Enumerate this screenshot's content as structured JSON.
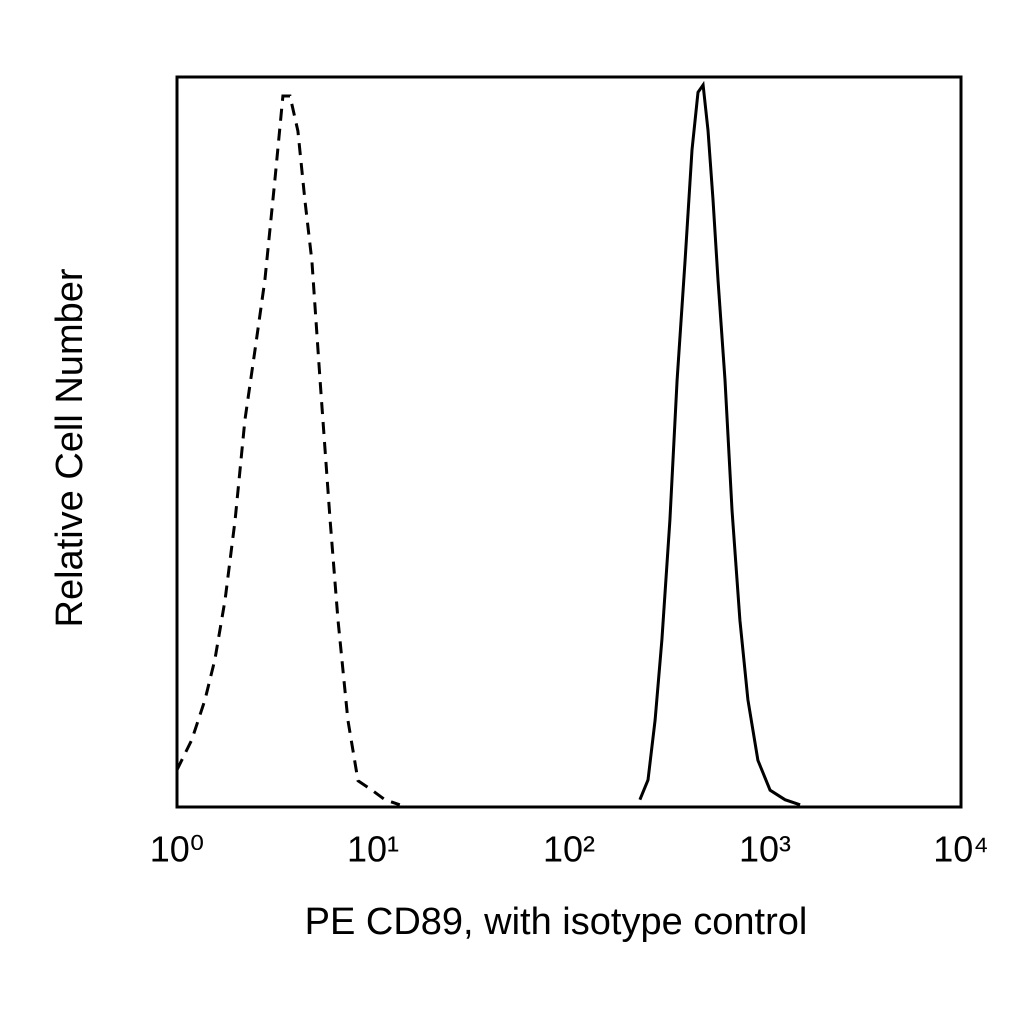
{
  "chart_data": {
    "type": "line",
    "xlabel": "PE CD89, with isotype control",
    "ylabel": "Relative Cell Number",
    "xscale": "log",
    "xlim": [
      1,
      10000
    ],
    "xticks": [
      {
        "value": 1,
        "label": "10⁰"
      },
      {
        "value": 10,
        "label": "10¹"
      },
      {
        "value": 100,
        "label": "10²"
      },
      {
        "value": 1000,
        "label": "10³"
      },
      {
        "value": 10000,
        "label": "10⁴"
      }
    ],
    "ylim": [
      0,
      100
    ],
    "series": [
      {
        "color": "#000000",
        "line_style": "dashed",
        "x": [
          1,
          1.19,
          1.39,
          1.56,
          1.76,
          1.98,
          2.22,
          2.5,
          2.81,
          3.16,
          3.47,
          3.77,
          4.14,
          4.5,
          4.88,
          5.37,
          6.04,
          6.63,
          7.45,
          8.38,
          9.88,
          11.5,
          13.7
        ],
        "values": [
          5.1,
          9.2,
          14.7,
          20.2,
          28.4,
          39.3,
          53,
          62.6,
          72.2,
          85.9,
          97.4,
          97.4,
          92.6,
          83,
          74.8,
          58.4,
          39.3,
          25.6,
          11.9,
          3.6,
          2.3,
          1,
          0.3
        ]
      },
      {
        "color": "#000000",
        "line_style": "solid",
        "x": [
          230,
          253,
          275,
          298,
          327,
          356,
          391,
          424,
          455,
          483,
          512,
          543,
          576,
          625,
          679,
          745,
          818,
          920,
          1062,
          1265,
          1510
        ],
        "values": [
          1,
          3.7,
          11.9,
          22.9,
          39.3,
          58.5,
          74.9,
          90,
          97.9,
          98.9,
          92.7,
          83.2,
          72.2,
          58.5,
          40.7,
          25.6,
          14.7,
          6.4,
          2.3,
          1,
          0.3
        ]
      }
    ]
  }
}
